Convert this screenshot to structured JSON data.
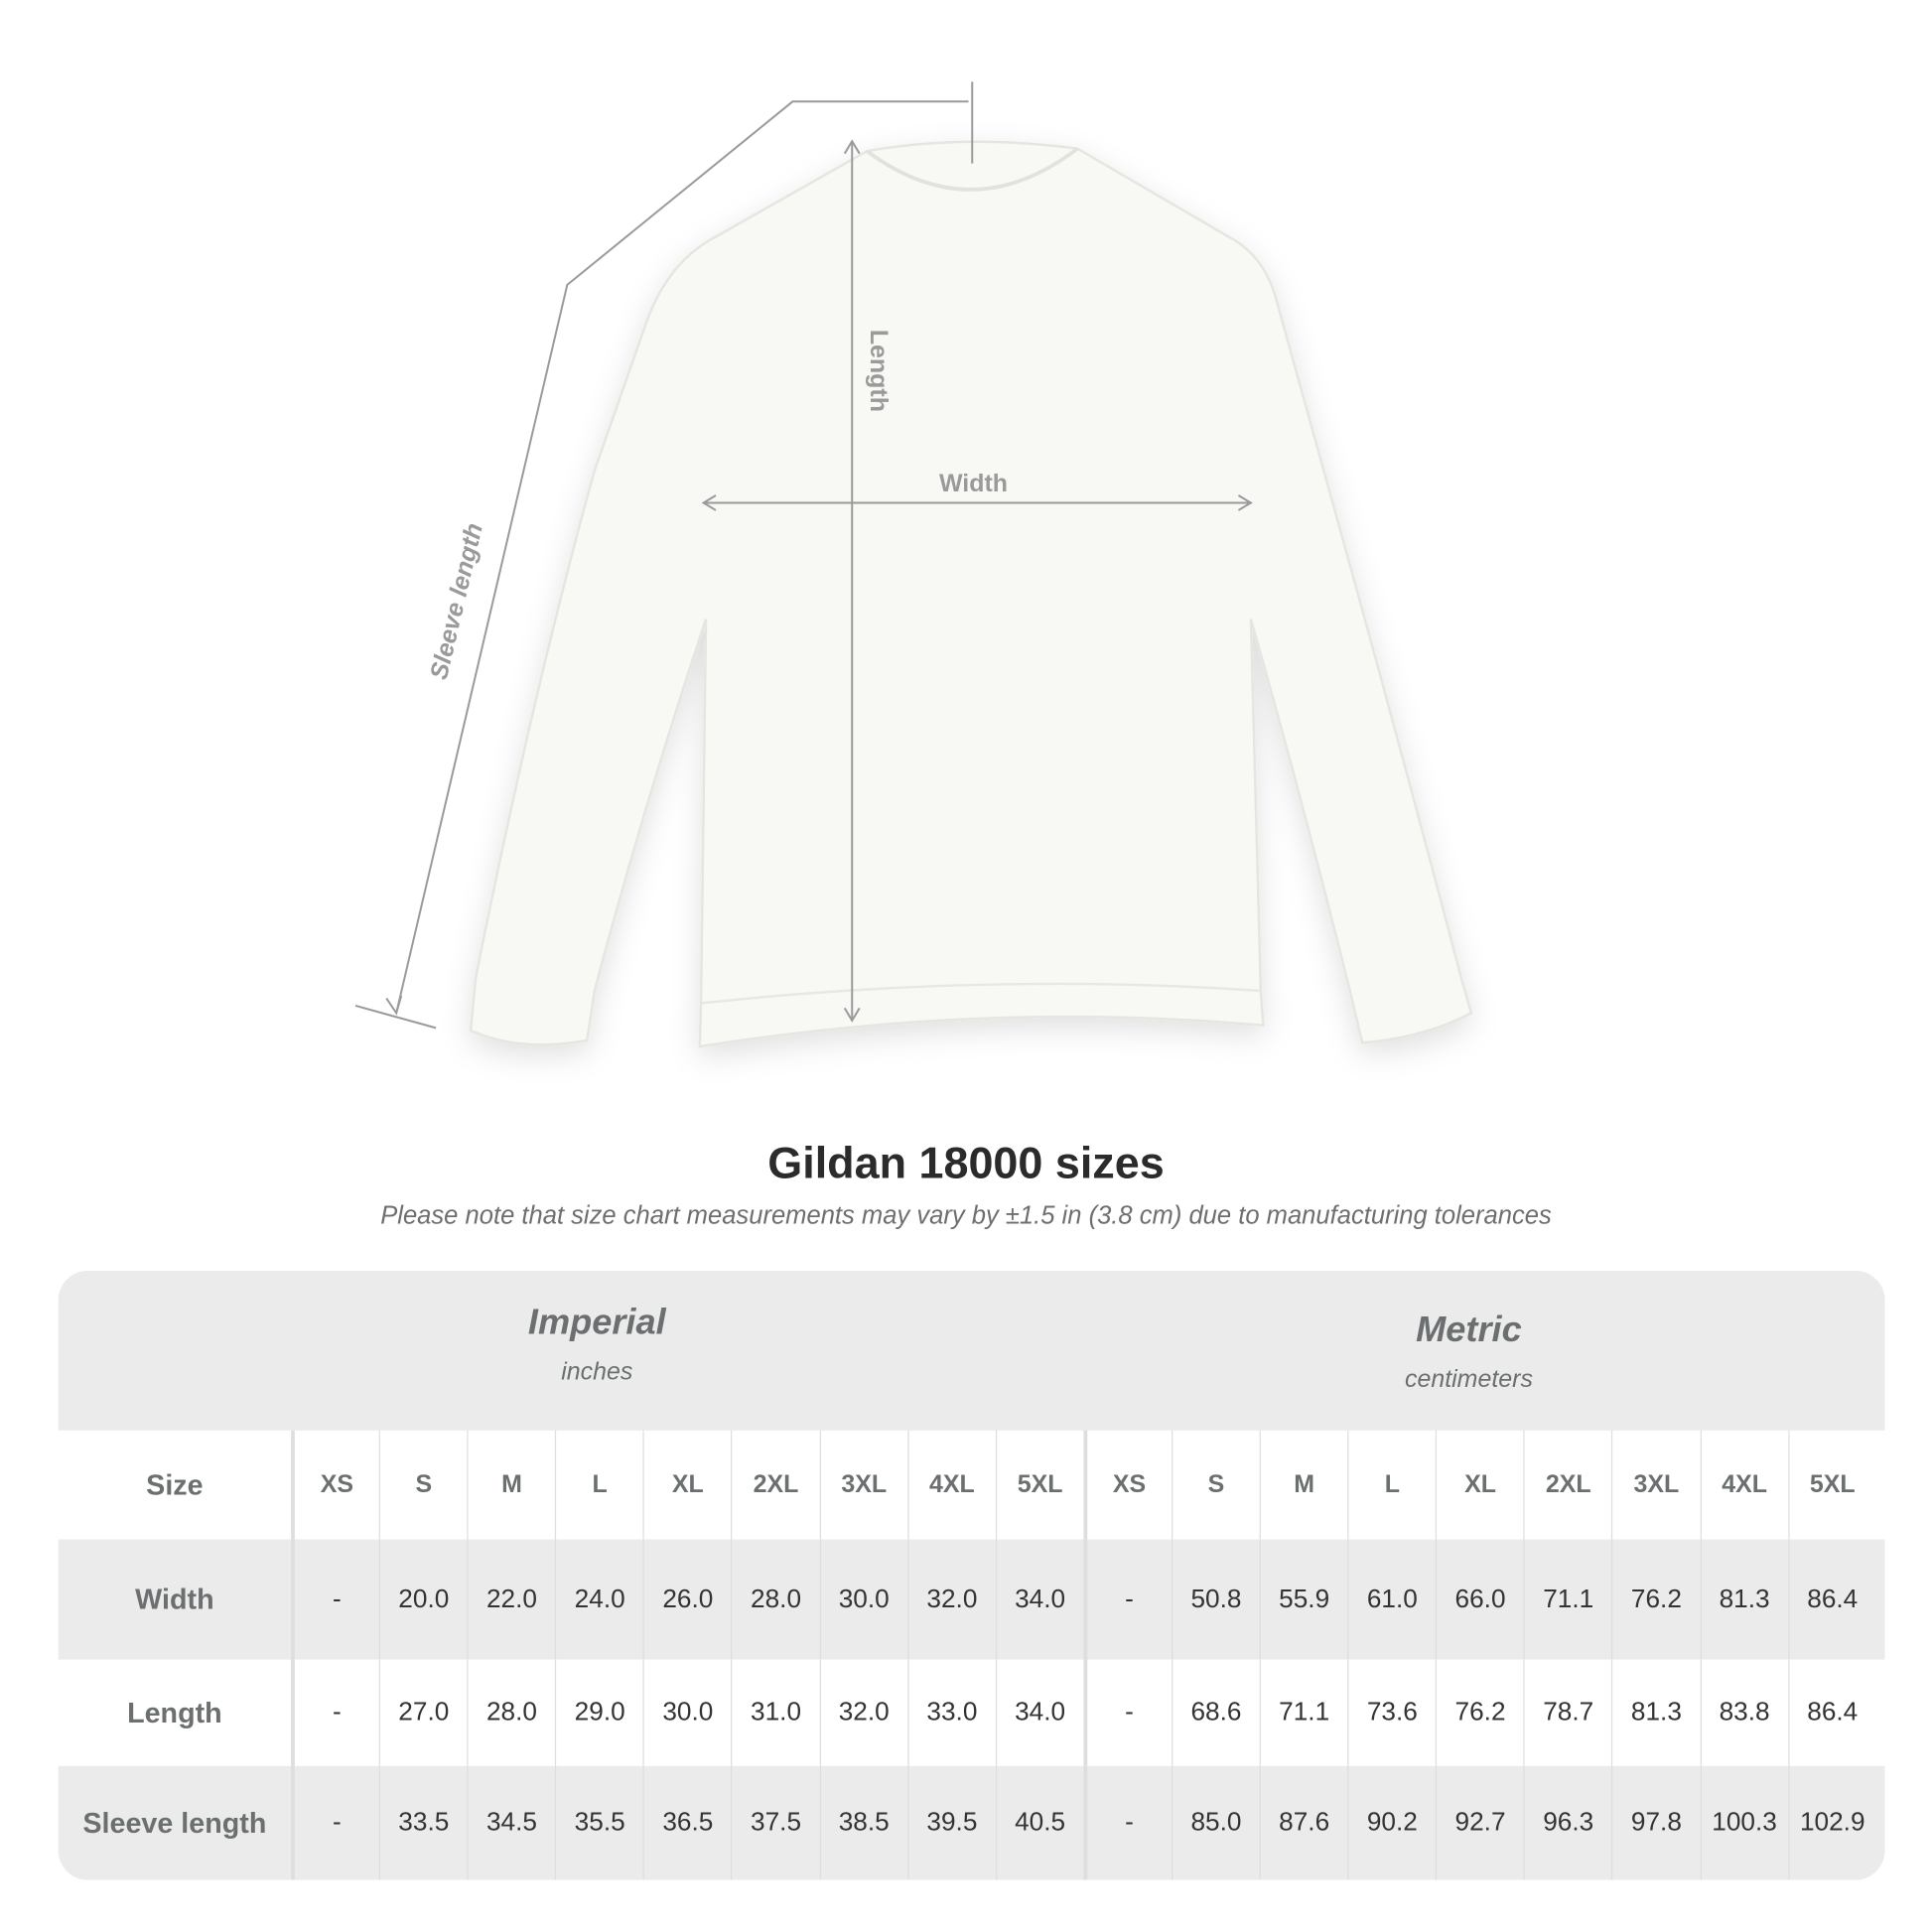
{
  "illustration": {
    "labels": {
      "length": "Length",
      "width": "Width",
      "sleeve": "Sleeve length"
    },
    "garment_color": "#f8f8f5",
    "line_color": "#9a9a9a"
  },
  "title": "Gildan 18000 sizes",
  "subtitle": "Please note that size chart measurements may vary by ±1.5 in (3.8 cm) due to manufacturing tolerances",
  "table": {
    "imperial": {
      "name": "Imperial",
      "unit": "inches"
    },
    "metric": {
      "name": "Metric",
      "unit": "centimeters"
    },
    "size_label": "Size",
    "sizes": [
      "XS",
      "S",
      "M",
      "L",
      "XL",
      "2XL",
      "3XL",
      "4XL",
      "5XL",
      "XS",
      "S",
      "M",
      "L",
      "XL",
      "2XL",
      "3XL",
      "4XL",
      "5XL"
    ],
    "rows": [
      {
        "label": "Width",
        "values": [
          "-",
          "20.0",
          "22.0",
          "24.0",
          "26.0",
          "28.0",
          "30.0",
          "32.0",
          "34.0",
          "-",
          "50.8",
          "55.9",
          "61.0",
          "66.0",
          "71.1",
          "76.2",
          "81.3",
          "86.4"
        ]
      },
      {
        "label": "Length",
        "values": [
          "-",
          "27.0",
          "28.0",
          "29.0",
          "30.0",
          "31.0",
          "32.0",
          "33.0",
          "34.0",
          "-",
          "68.6",
          "71.1",
          "73.6",
          "76.2",
          "78.7",
          "81.3",
          "83.8",
          "86.4"
        ]
      },
      {
        "label": "Sleeve length",
        "values": [
          "-",
          "33.5",
          "34.5",
          "35.5",
          "36.5",
          "37.5",
          "38.5",
          "39.5",
          "40.5",
          "-",
          "85.0",
          "87.6",
          "90.2",
          "92.7",
          "96.3",
          "97.8",
          "100.3",
          "102.9"
        ]
      }
    ]
  }
}
